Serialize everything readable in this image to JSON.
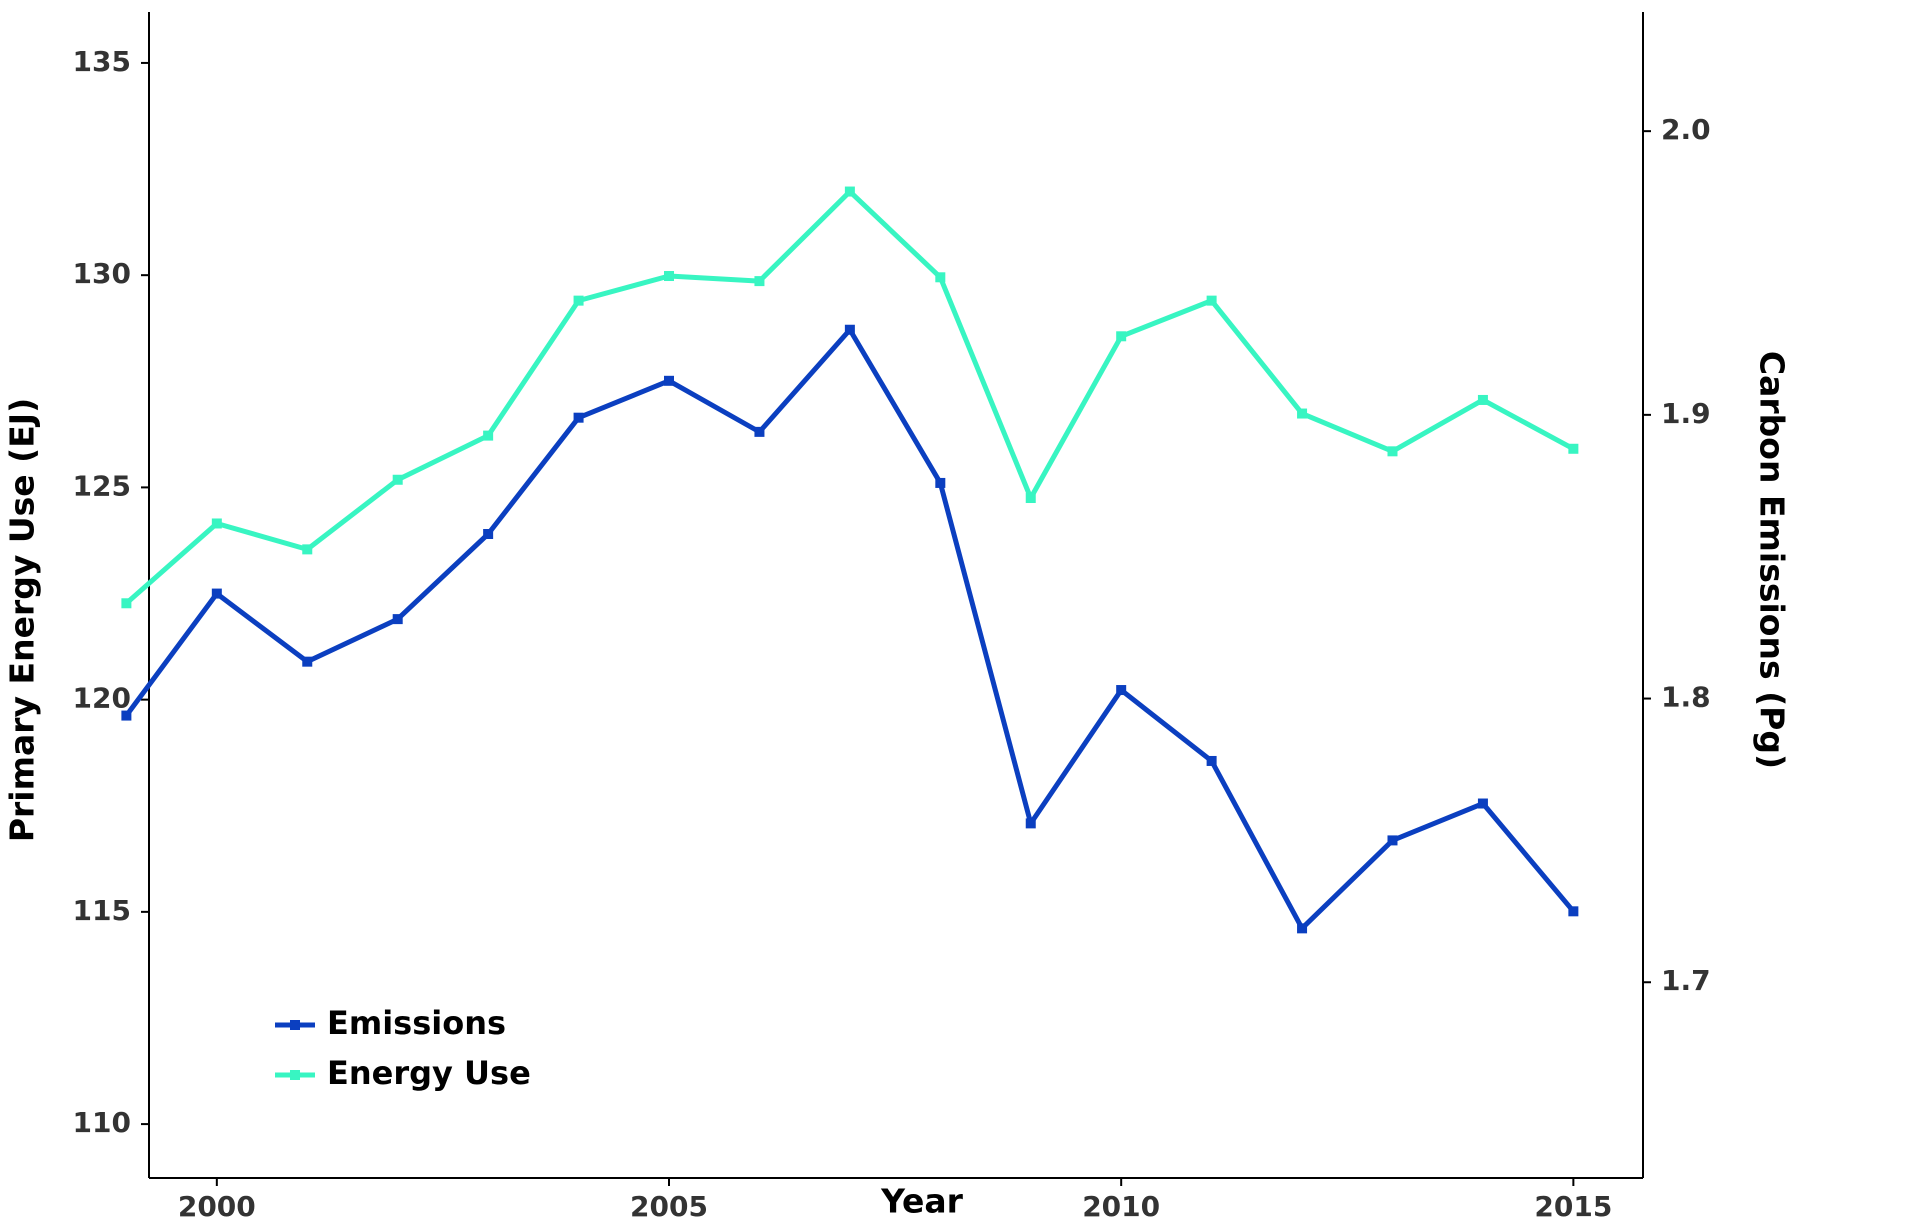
{
  "chart_data": {
    "type": "line",
    "x_label": "Year",
    "y_label": "Primary Energy Use (EJ)",
    "y2_label": "Carbon Emissions (Pg)",
    "x": [
      1999,
      2000,
      2001,
      2002,
      2003,
      2004,
      2005,
      2006,
      2007,
      2008,
      2009,
      2010,
      2011,
      2012,
      2013,
      2014,
      2015
    ],
    "series": [
      {
        "name": "Emissions",
        "color": "#0b3fc0",
        "axis": "y2",
        "values": [
          1.794,
          1.837,
          1.813,
          1.828,
          1.858,
          1.899,
          1.912,
          1.894,
          1.93,
          1.876,
          1.756,
          1.803,
          1.778,
          1.719,
          1.75,
          1.763,
          1.725
        ]
      },
      {
        "name": "Energy Use",
        "color": "#38f5c2",
        "axis": "y",
        "values": [
          122.27,
          124.15,
          123.54,
          125.18,
          126.22,
          129.4,
          129.98,
          129.86,
          131.97,
          129.95,
          124.75,
          128.56,
          129.4,
          126.74,
          125.85,
          127.06,
          125.91
        ]
      }
    ],
    "xlim": [
      1999.25,
      2015.77
    ],
    "xticks": [
      2000,
      2005,
      2010,
      2015
    ],
    "ylim": [
      108.73,
      136.2
    ],
    "yticks": [
      110,
      115,
      120,
      125,
      130,
      135
    ],
    "y2lim": [
      1.631,
      2.042
    ],
    "y2ticks": [
      {
        "value": 1.7,
        "label": "1.7"
      },
      {
        "value": 1.8,
        "label": "1.8"
      },
      {
        "value": 1.9,
        "label": "1.9"
      },
      {
        "value": 2.0,
        "label": "2.0"
      }
    ],
    "legend": "lower left",
    "grid": false
  }
}
